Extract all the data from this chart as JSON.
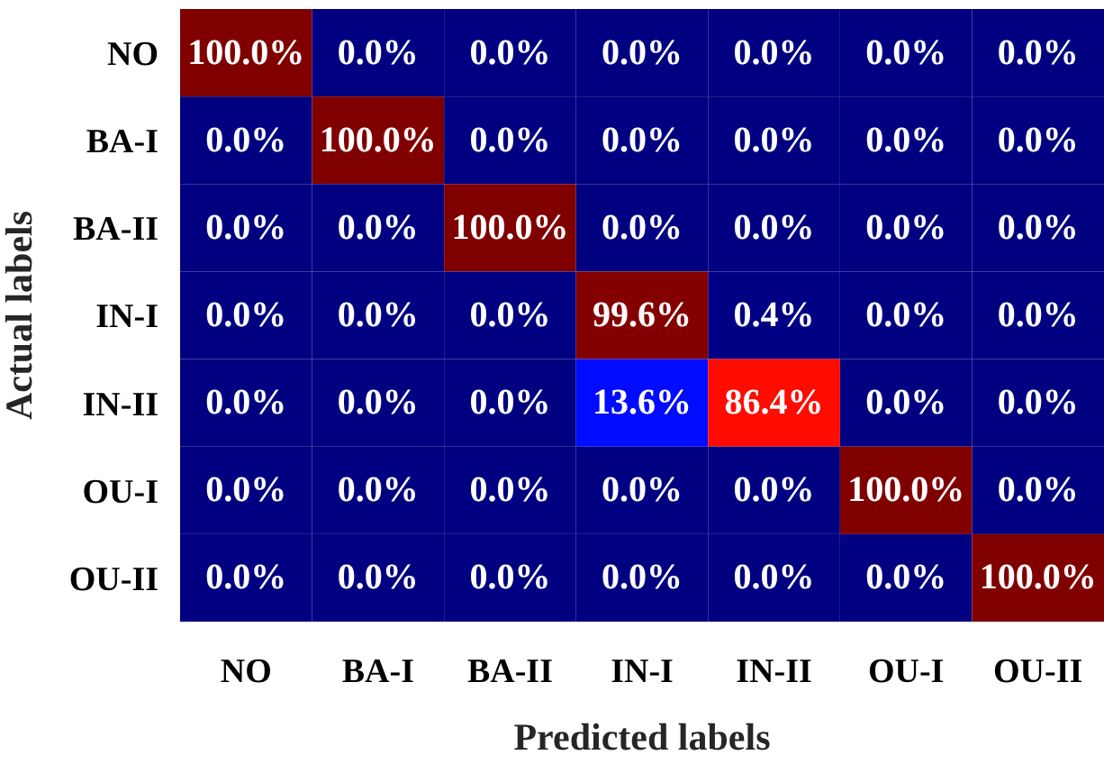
{
  "chart_data": {
    "type": "heatmap",
    "xlabel": "Predicted labels",
    "ylabel": "Actual labels",
    "categories": [
      "NO",
      "BA-I",
      "BA-II",
      "IN-I",
      "IN-II",
      "OU-I",
      "OU-II"
    ],
    "y_categories": [
      "NO",
      "BA-I",
      "BA-II",
      "IN-I",
      "IN-II",
      "OU-I",
      "OU-II"
    ],
    "cells": [
      [
        100.0,
        0.0,
        0.0,
        0.0,
        0.0,
        0.0,
        0.0
      ],
      [
        0.0,
        100.0,
        0.0,
        0.0,
        0.0,
        0.0,
        0.0
      ],
      [
        0.0,
        0.0,
        100.0,
        0.0,
        0.0,
        0.0,
        0.0
      ],
      [
        0.0,
        0.0,
        0.0,
        99.6,
        0.4,
        0.0,
        0.0
      ],
      [
        0.0,
        0.0,
        0.0,
        13.6,
        86.4,
        0.0,
        0.0
      ],
      [
        0.0,
        0.0,
        0.0,
        0.0,
        0.0,
        100.0,
        0.0
      ],
      [
        0.0,
        0.0,
        0.0,
        0.0,
        0.0,
        0.0,
        100.0
      ]
    ],
    "cell_labels": [
      [
        "100.0%",
        "0.0%",
        "0.0%",
        "0.0%",
        "0.0%",
        "0.0%",
        "0.0%"
      ],
      [
        "0.0%",
        "100.0%",
        "0.0%",
        "0.0%",
        "0.0%",
        "0.0%",
        "0.0%"
      ],
      [
        "0.0%",
        "0.0%",
        "100.0%",
        "0.0%",
        "0.0%",
        "0.0%",
        "0.0%"
      ],
      [
        "0.0%",
        "0.0%",
        "0.0%",
        "99.6%",
        "0.4%",
        "0.0%",
        "0.0%"
      ],
      [
        "0.0%",
        "0.0%",
        "0.0%",
        "13.6%",
        "86.4%",
        "0.0%",
        "0.0%"
      ],
      [
        "0.0%",
        "0.0%",
        "0.0%",
        "0.0%",
        "0.0%",
        "100.0%",
        "0.0%"
      ],
      [
        "0.0%",
        "0.0%",
        "0.0%",
        "0.0%",
        "0.0%",
        "0.0%",
        "100.0%"
      ]
    ]
  }
}
